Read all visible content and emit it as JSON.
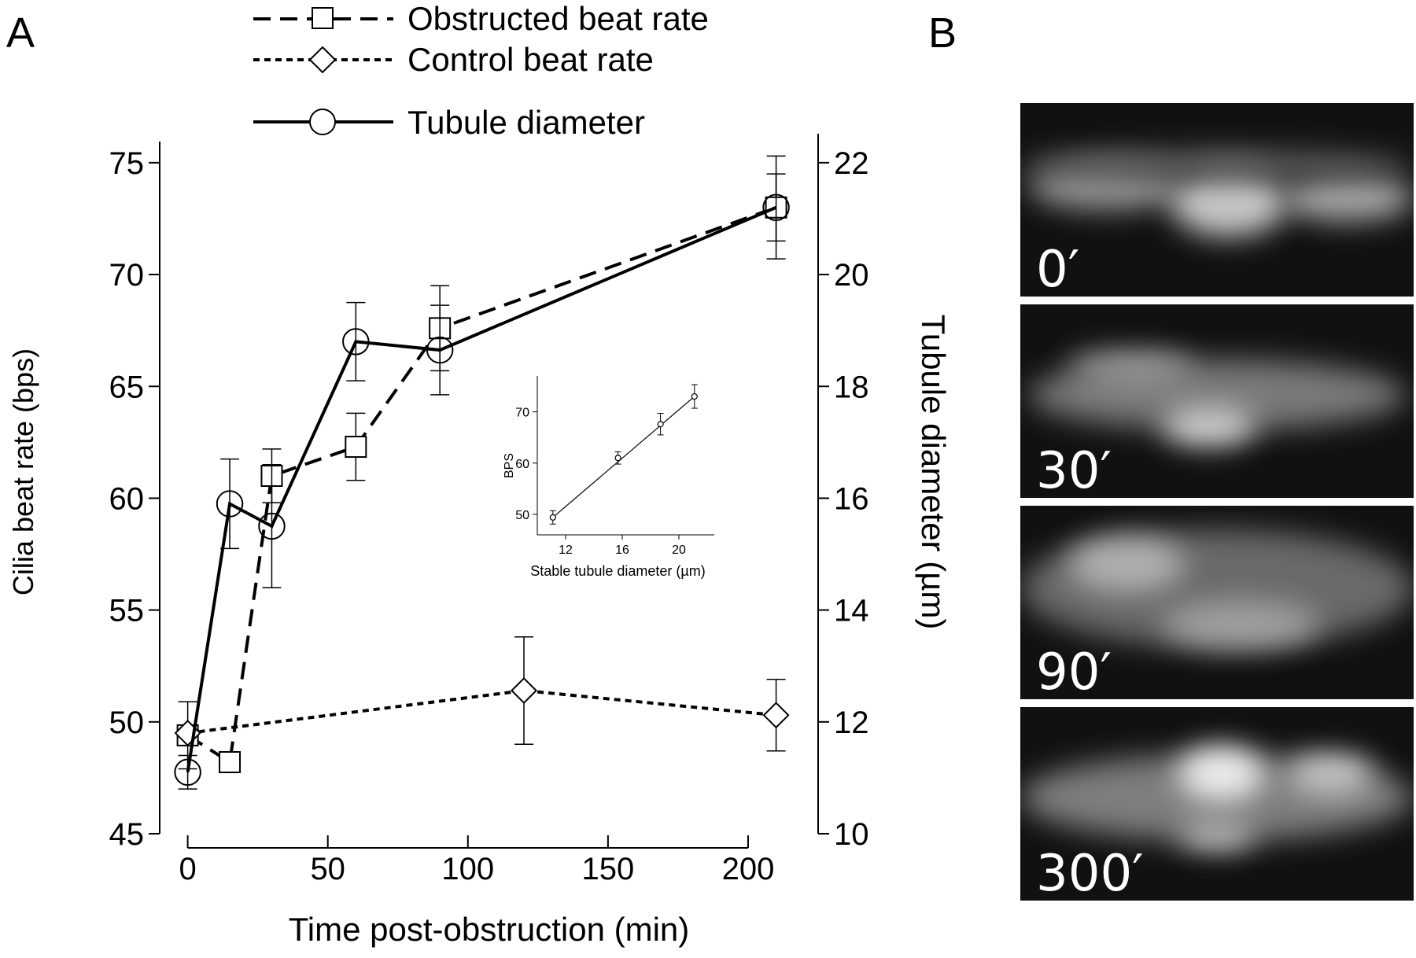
{
  "panel_labels": {
    "a": "A",
    "b": "B"
  },
  "legend": [
    {
      "label": "Obstructed beat rate",
      "marker": "square",
      "dash": "dashed"
    },
    {
      "label": "Control beat rate",
      "marker": "diamond",
      "dash": "dotted"
    },
    {
      "label": "Tubule diameter",
      "marker": "circle",
      "dash": "solid"
    }
  ],
  "chart_data": [
    {
      "id": "main",
      "type": "line",
      "xlabel": "Time post-obstruction (min)",
      "ylabel": "Cilia beat rate (bps)",
      "y2label": "Tubule diameter (µm)",
      "xlim": [
        -10,
        225
      ],
      "ylim": [
        45,
        77
      ],
      "y2lim": [
        10,
        22.8
      ],
      "xticks": [
        0,
        50,
        100,
        150,
        200
      ],
      "yticks": [
        45,
        50,
        55,
        60,
        65,
        70,
        75
      ],
      "y2ticks": [
        10,
        12,
        14,
        16,
        18,
        20,
        22
      ],
      "series": [
        {
          "name": "Obstructed beat rate",
          "axis": "left",
          "marker": "square",
          "dash": "dashed",
          "x": [
            0,
            15,
            30,
            60,
            90,
            210
          ],
          "y": [
            49.4,
            48.2,
            61.0,
            62.3,
            67.6,
            73.0
          ],
          "err": [
            1.5,
            0,
            1.2,
            1.5,
            1.9,
            2.3
          ]
        },
        {
          "name": "Control beat rate",
          "axis": "left",
          "marker": "diamond",
          "dash": "dotted",
          "x": [
            0,
            120,
            210
          ],
          "y": [
            49.5,
            51.4,
            50.3
          ],
          "err": [
            0,
            2.4,
            1.6
          ]
        },
        {
          "name": "Tubule diameter",
          "axis": "right",
          "marker": "circle",
          "dash": "solid",
          "x": [
            0,
            15,
            30,
            60,
            90,
            210
          ],
          "y": [
            11.1,
            15.9,
            15.5,
            18.8,
            18.65,
            21.2
          ],
          "err": [
            0.3,
            0.8,
            1.1,
            0.7,
            0.8,
            0.6
          ]
        }
      ]
    },
    {
      "id": "inset",
      "type": "scatter",
      "xlabel": "Stable tubule diameter (µm)",
      "ylabel": "BPS",
      "xlim": [
        10,
        22.5
      ],
      "ylim": [
        46,
        77
      ],
      "xticks": [
        12,
        16,
        20
      ],
      "yticks": [
        50,
        60,
        70
      ],
      "points": {
        "x": [
          11.1,
          15.7,
          18.7,
          21.1
        ],
        "y": [
          49.4,
          61.0,
          67.6,
          73.0
        ],
        "err": [
          1.3,
          1.2,
          2.1,
          2.3
        ]
      },
      "fit": {
        "x": [
          11.1,
          21.1
        ],
        "y": [
          49.4,
          73.0
        ]
      }
    }
  ],
  "micrographs": [
    {
      "label": "0′"
    },
    {
      "label": "30′"
    },
    {
      "label": "90′"
    },
    {
      "label": "300′"
    }
  ]
}
